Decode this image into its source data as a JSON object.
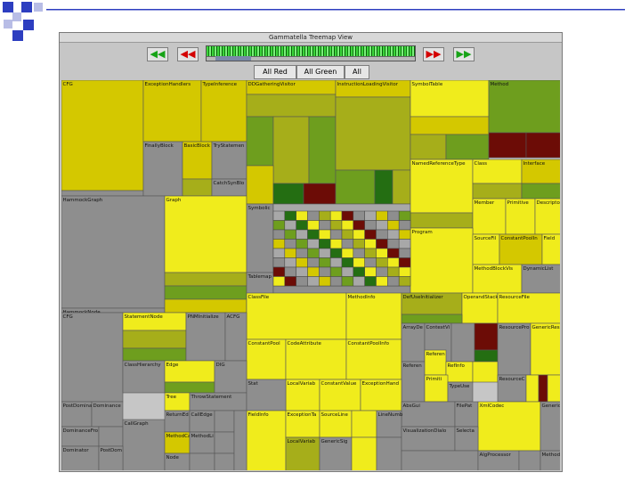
{
  "window": {
    "title": "Gammatella Treemap View"
  },
  "toolbar": {
    "buttons": [
      {
        "name": "fast-back-button",
        "glyph": "◀◀",
        "color": "green"
      },
      {
        "name": "back-button",
        "glyph": "◀◀",
        "color": "red"
      },
      {
        "name": "forward-button",
        "glyph": "▶▶",
        "color": "red"
      },
      {
        "name": "fast-forward-button",
        "glyph": "▶▶",
        "color": "green"
      }
    ],
    "filters": {
      "all_red": "All Red",
      "all_green": "All Green",
      "all": "All"
    }
  },
  "colors": {
    "yellow": "#f0ec1c",
    "gold": "#d4c800",
    "olive": "#a6ae1a",
    "green": "#6e9e1e",
    "dkgreen": "#246e12",
    "red": "#6c0c06",
    "gray": "#8e8e8e",
    "lgray": "#a8a8a8"
  },
  "treemap": {
    "labels": {
      "cfg_top": "CFG",
      "exception_handlers": "ExceptionHandlers",
      "type_inference": "TypeInference",
      "dd_gathering_visitor": "DDGatheringVisitor",
      "instruction_loading_visitor": "InstructionLoadingVisitor",
      "symbol_table": "SymbolTable",
      "method": "Method",
      "finally_block": "FinallyBlock",
      "basic_block": "BasicBlock",
      "try_statement": "TryStatement",
      "catch_block": "CatchSynBlock",
      "hammock_graph": "HammockGraph",
      "graph": "Graph",
      "hammock_node": "HammockNode",
      "symbolic": "Symbolic",
      "tablemap": "Tablemap",
      "named_reference_type": "NamedReferenceType",
      "class": "Class",
      "interface": "Interface",
      "member": "Member",
      "primitive": "Primitive",
      "descriptor": "Descriptor",
      "program": "Program",
      "source_file": "SourceFile",
      "constant_pool_info": "ConstantPoolInfo",
      "field": "Field",
      "method_block": "MethodBlockVis",
      "dynamic_list": "DynamicList",
      "class_file": "ClassFile",
      "method_info": "MethodInfo",
      "def_use_initializer": "DefUseInitializer",
      "operand_stack": "OperandStack",
      "resource_file": "ResourceFile",
      "cfg": "CFG",
      "statement_node": "StatementNode",
      "pnm_initializer": "PNMInitializer",
      "acfg": "ACFG",
      "constant_pool": "ConstantPool",
      "code_attribute": "CodeAttribute",
      "array_def": "ArrayDefContext",
      "context_vis": "ContextVis",
      "resource_proc": "ResourceProc",
      "generic_res": "GenericResource",
      "class_hierarchy_graph": "ClassHierarchyGraph",
      "edge": "Edge",
      "dig": "DIG",
      "reference": "Reference",
      "ref_info": "RefInfo",
      "reference_var": "ReferenceVar",
      "local_variable": "LocalVariable",
      "constant_value": "ConstantValue",
      "exception_handler": "ExceptionHandler",
      "primitive_type": "PrimitiveType",
      "type_use": "TypeUse",
      "resource_code": "ResourceCodeAPIrc",
      "post_dominator": "PostDominator",
      "dominance": "Dominance",
      "tree": "Tree",
      "throw_statement": "ThrowStatement",
      "stat": "Stat",
      "abs_gui": "AbsGui",
      "file_path_parser": "FilePathParser",
      "xml_code": "XmlCodec",
      "dominance_frontier": "DominanceFrontier",
      "generic_core": "GenericCore",
      "call_graph": "CallGraph",
      "return_edge": "ReturnEdge",
      "call_edge": "CallEdge",
      "field_info": "FieldInfo",
      "exception_table": "ExceptionTable",
      "source_line": "SourceLineNum",
      "method_call": "MethodCall",
      "dominator": "Dominator",
      "inner_class": "InnerClassInfo",
      "dominator_tree": "DominatorTree",
      "post_dom": "PostDom",
      "node": "Node",
      "local_var_table": "LocalVariableTable",
      "generic_sig": "GenericSignature",
      "line_number": "LineNumber",
      "visualization_dialog": "VisualizationDialog",
      "selectable": "Selectable",
      "alg_processor": "AlgProcessor",
      "method_ca": "MethodCa",
      "method_list": "MethodList"
    }
  }
}
